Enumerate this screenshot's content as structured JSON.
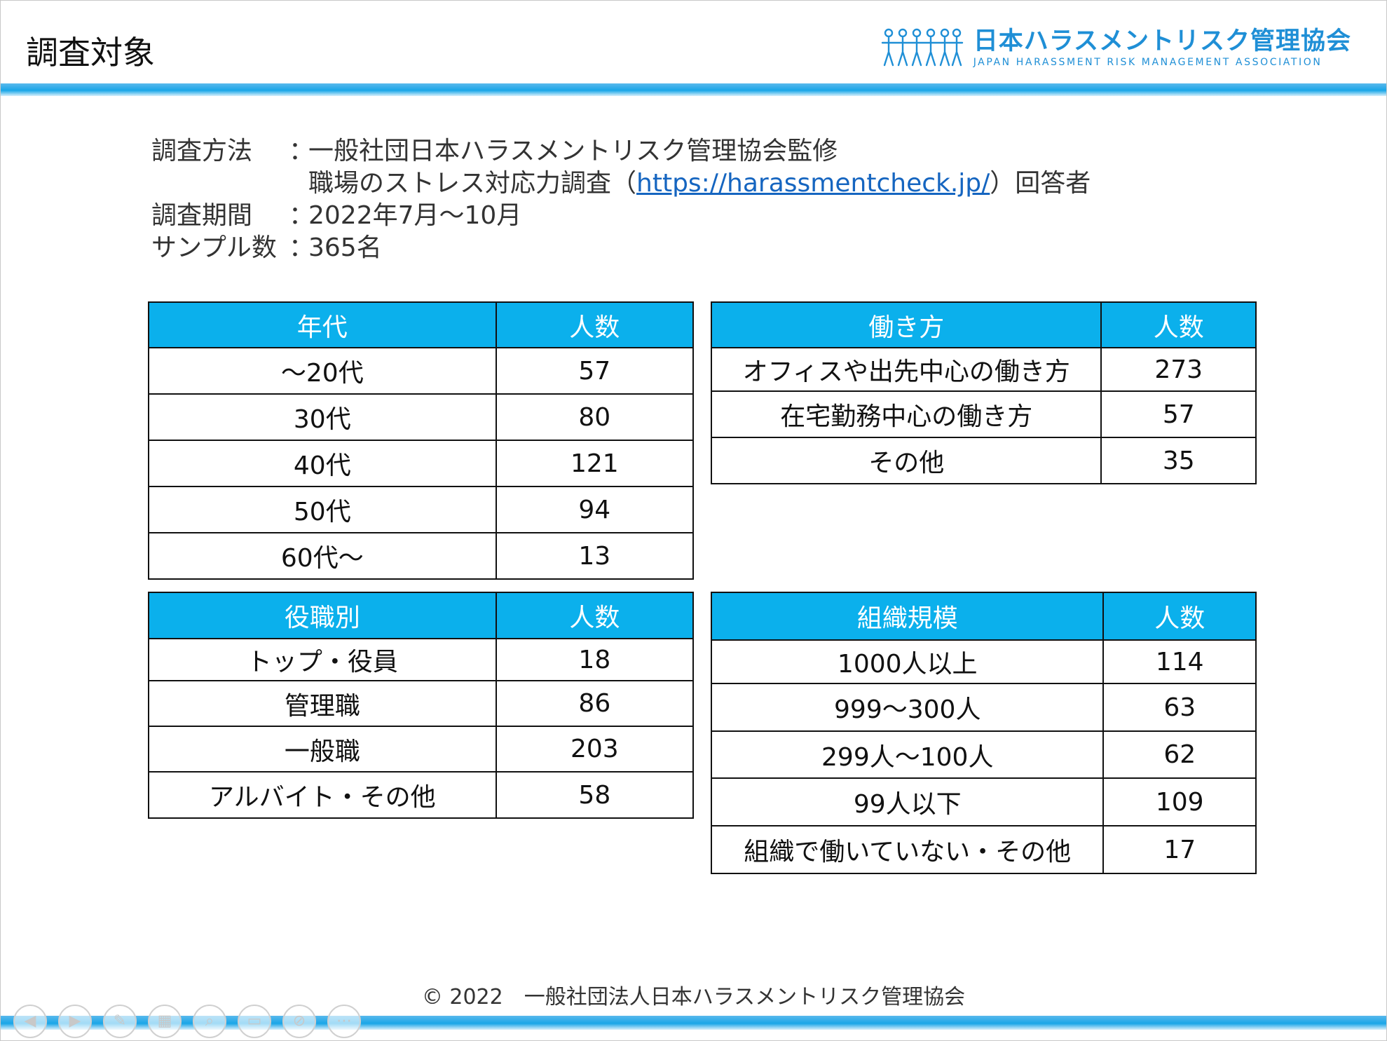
{
  "slide_title": "調査対象",
  "logo": {
    "name_ja": "日本ハラスメントリスク管理協会",
    "name_en": "JAPAN HARASSMENT RISK MANAGEMENT ASSOCIATION"
  },
  "info": {
    "method_label": "調査方法",
    "separator": "：",
    "method_value": "一般社団日本ハラスメントリスク管理協会監修",
    "method_cont_prefix": "職場のストレス対応力調査（",
    "method_link": "https://harassmentcheck.jp/",
    "method_cont_suffix": "）回答者",
    "period_label": "調査期間",
    "period_value": "2022年7月～10月",
    "sample_label": "サンプル数",
    "sample_value": "365名"
  },
  "table_age": {
    "header": [
      "年代",
      "人数"
    ],
    "rows": [
      [
        "～20代",
        "57"
      ],
      [
        "30代",
        "80"
      ],
      [
        "40代",
        "121"
      ],
      [
        "50代",
        "94"
      ],
      [
        "60代～",
        "13"
      ]
    ]
  },
  "table_work": {
    "header": [
      "働き方",
      "人数"
    ],
    "rows": [
      [
        "オフィスや出先中心の働き方",
        "273"
      ],
      [
        "在宅勤務中心の働き方",
        "57"
      ],
      [
        "その他",
        "35"
      ]
    ]
  },
  "table_position": {
    "header": [
      "役職別",
      "人数"
    ],
    "rows": [
      [
        "トップ・役員",
        "18"
      ],
      [
        "管理職",
        "86"
      ],
      [
        "一般職",
        "203"
      ],
      [
        "アルバイト・その他",
        "58"
      ]
    ]
  },
  "table_org": {
    "header": [
      "組織規模",
      "人数"
    ],
    "rows": [
      [
        "1000人以上",
        "114"
      ],
      [
        "999～300人",
        "63"
      ],
      [
        "299人～100人",
        "62"
      ],
      [
        "99人以下",
        "109"
      ],
      [
        "組織で働いていない・その他",
        "17"
      ]
    ]
  },
  "footer": "© 2022　一般社団法人日本ハラスメントリスク管理協会",
  "controls": {
    "prev_icon": "arrow-left-icon",
    "next_icon": "arrow-right-icon",
    "pen_icon": "pen-icon",
    "grid_icon": "grid-icon",
    "zoom_icon": "magnifier-icon",
    "subtitle_icon": "subtitle-icon",
    "camera_icon": "camera-off-icon",
    "more_icon": "more-icon"
  },
  "colors": {
    "accent": "#0bb0ec",
    "link": "#1565c0",
    "logo": "#1f8fd6"
  }
}
